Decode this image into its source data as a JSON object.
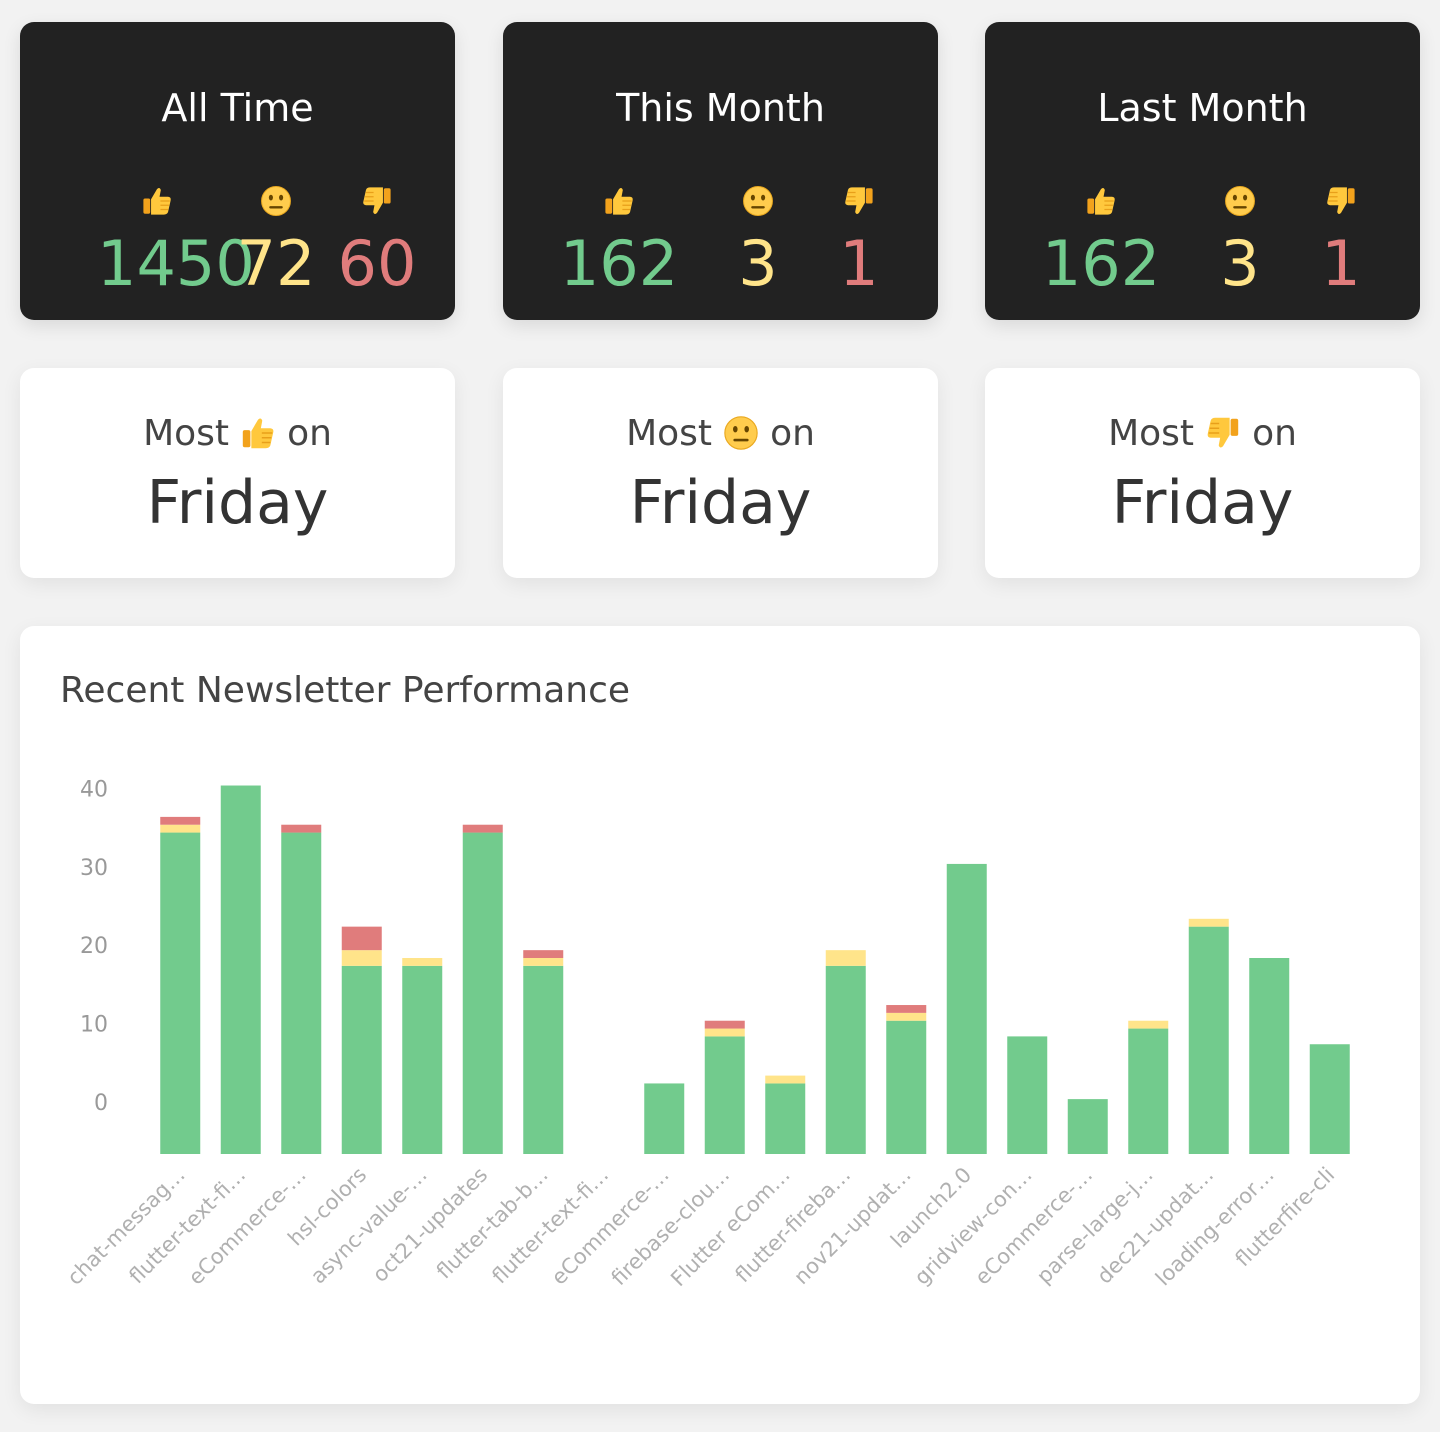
{
  "stats": [
    {
      "title": "All Time",
      "up": "1450",
      "neutral": "72",
      "down": "60"
    },
    {
      "title": "This Month",
      "up": "162",
      "neutral": "3",
      "down": "1"
    },
    {
      "title": "Last Month",
      "up": "162",
      "neutral": "3",
      "down": "1"
    }
  ],
  "icons": {
    "up": "thumbs-up-emoji",
    "neutral": "neutral-face-emoji",
    "down": "thumbs-down-emoji"
  },
  "most": [
    {
      "prefix": "Most",
      "suffix": "on",
      "emoji": "thumbs-up-emoji",
      "day": "Friday"
    },
    {
      "prefix": "Most",
      "suffix": "on",
      "emoji": "neutral-face-emoji",
      "day": "Friday"
    },
    {
      "prefix": "Most",
      "suffix": "on",
      "emoji": "thumbs-down-emoji",
      "day": "Friday"
    }
  ],
  "colors": {
    "positive": "#72cb8d",
    "neutral": "#ffe48a",
    "negative": "#e07c7c",
    "dark_card": "#222222"
  },
  "chart_data": {
    "type": "bar",
    "stacked": true,
    "title": "Recent Newsletter Performance",
    "ylim": [
      0,
      50
    ],
    "yticks": [
      0,
      10,
      20,
      30,
      40,
      50
    ],
    "grid": false,
    "categories": [
      "chat-messag…",
      "flutter-text-fi…",
      "eCommerce-…",
      "hsl-colors",
      "async-value-…",
      "oct21-updates",
      "flutter-tab-b…",
      "flutter-text-fi…",
      "eCommerce-…",
      "firebase-clou…",
      "Flutter eCom…",
      "flutter-fireba…",
      "nov21-updat…",
      "launch2.0",
      "gridview-con…",
      "eCommerce-…",
      "parse-large-j…",
      "dec21-updat…",
      "loading-error…",
      "flutterfire-cli"
    ],
    "series": [
      {
        "key": "positive",
        "values": [
          41,
          47,
          41,
          24,
          24,
          41,
          24,
          0,
          9,
          15,
          9,
          24,
          17,
          37,
          15,
          7,
          16,
          29,
          25,
          14
        ]
      },
      {
        "key": "neutral",
        "values": [
          1,
          0,
          0,
          2,
          1,
          0,
          1,
          0,
          0,
          1,
          1,
          2,
          1,
          0,
          0,
          0,
          1,
          1,
          0,
          0
        ]
      },
      {
        "key": "negative",
        "values": [
          1,
          0,
          1,
          3,
          0,
          1,
          1,
          0,
          0,
          1,
          0,
          0,
          1,
          0,
          0,
          0,
          0,
          0,
          0,
          0
        ]
      }
    ]
  }
}
